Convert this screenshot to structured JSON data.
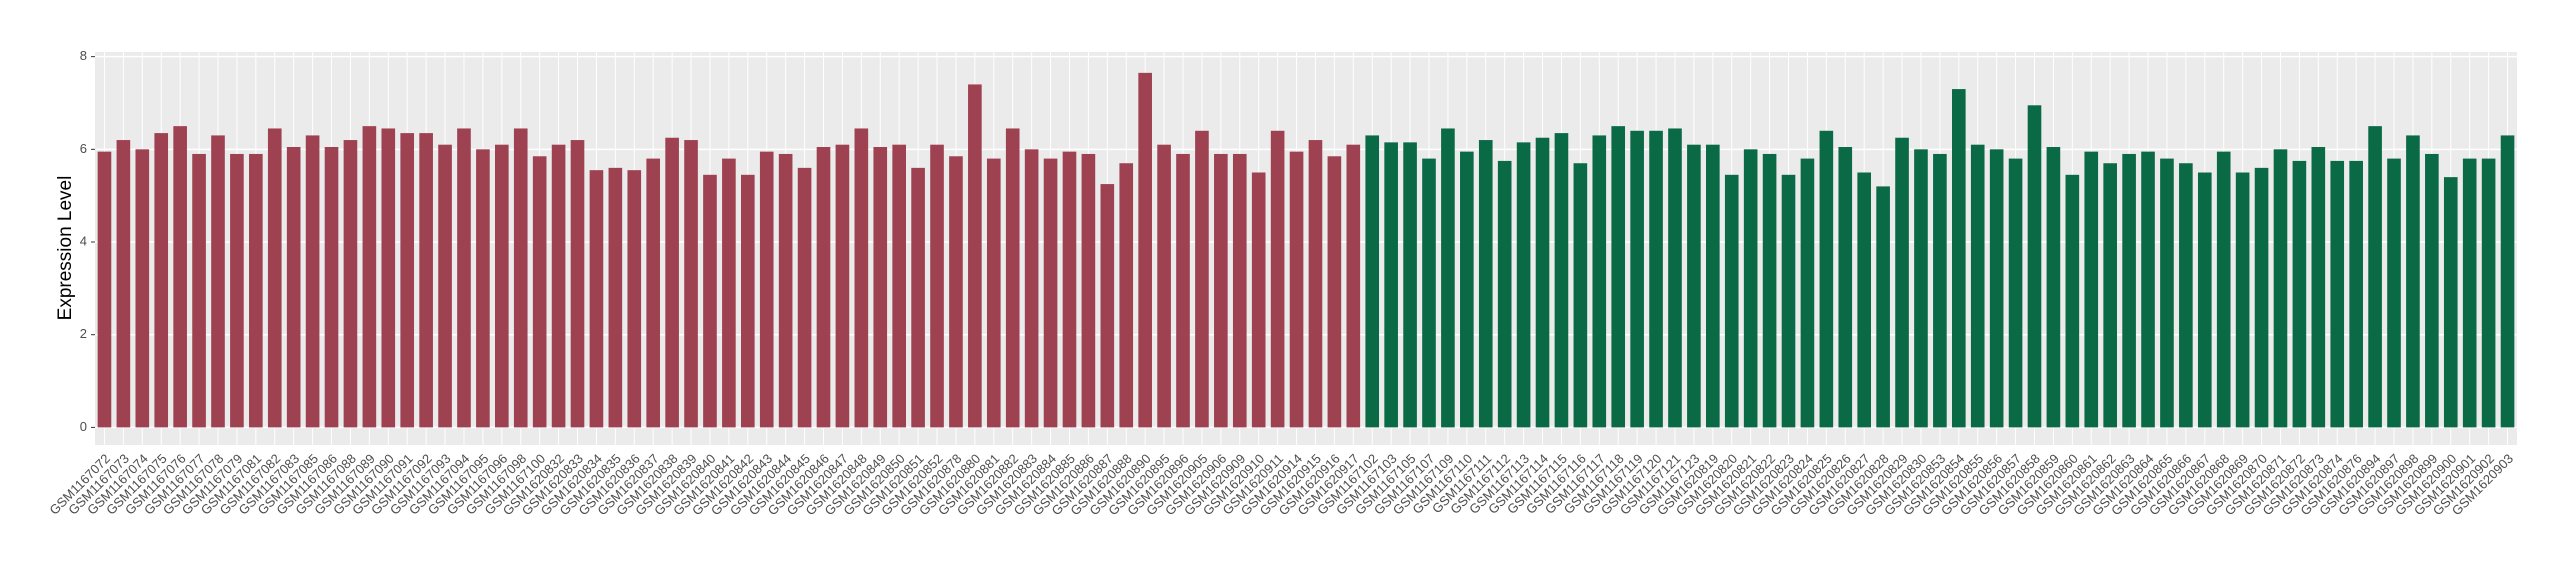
{
  "chart_data": {
    "type": "bar",
    "y_label": "Expression Level",
    "categories": [
      "GSM1167072",
      "GSM1167073",
      "GSM1167074",
      "GSM1167075",
      "GSM1167076",
      "GSM1167077",
      "GSM1167078",
      "GSM1167079",
      "GSM1167081",
      "GSM1167082",
      "GSM1167083",
      "GSM1167085",
      "GSM1167086",
      "GSM1167088",
      "GSM1167089",
      "GSM1167090",
      "GSM1167091",
      "GSM1167092",
      "GSM1167093",
      "GSM1167094",
      "GSM1167095",
      "GSM1167096",
      "GSM1167098",
      "GSM1167100",
      "GSM1620832",
      "GSM1620833",
      "GSM1620834",
      "GSM1620835",
      "GSM1620836",
      "GSM1620837",
      "GSM1620838",
      "GSM1620839",
      "GSM1620840",
      "GSM1620841",
      "GSM1620842",
      "GSM1620843",
      "GSM1620844",
      "GSM1620845",
      "GSM1620846",
      "GSM1620847",
      "GSM1620848",
      "GSM1620849",
      "GSM1620850",
      "GSM1620851",
      "GSM1620852",
      "GSM1620878",
      "GSM1620880",
      "GSM1620881",
      "GSM1620882",
      "GSM1620883",
      "GSM1620884",
      "GSM1620885",
      "GSM1620886",
      "GSM1620887",
      "GSM1620888",
      "GSM1620890",
      "GSM1620895",
      "GSM1620896",
      "GSM1620905",
      "GSM1620906",
      "GSM1620909",
      "GSM1620910",
      "GSM1620911",
      "GSM1620914",
      "GSM1620915",
      "GSM1620916",
      "GSM1620917",
      "GSM1167102",
      "GSM1167103",
      "GSM1167105",
      "GSM1167107",
      "GSM1167109",
      "GSM1167110",
      "GSM1167111",
      "GSM1167112",
      "GSM1167113",
      "GSM1167114",
      "GSM1167115",
      "GSM1167116",
      "GSM1167117",
      "GSM1167118",
      "GSM1167119",
      "GSM1167120",
      "GSM1167121",
      "GSM1167123",
      "GSM1620819",
      "GSM1620820",
      "GSM1620821",
      "GSM1620822",
      "GSM1620823",
      "GSM1620824",
      "GSM1620825",
      "GSM1620826",
      "GSM1620827",
      "GSM1620828",
      "GSM1620829",
      "GSM1620830",
      "GSM1620853",
      "GSM1620854",
      "GSM1620855",
      "GSM1620856",
      "GSM1620857",
      "GSM1620858",
      "GSM1620859",
      "GSM1620860",
      "GSM1620861",
      "GSM1620862",
      "GSM1620863",
      "GSM1620864",
      "GSM1620865",
      "GSM1620866",
      "GSM1620867",
      "GSM1620868",
      "GSM1620869",
      "GSM1620870",
      "GSM1620871",
      "GSM1620872",
      "GSM1620873",
      "GSM1620874",
      "GSM1620876",
      "GSM1620894",
      "GSM1620897",
      "GSM1620898",
      "GSM1620899",
      "GSM1620900",
      "GSM1620901",
      "GSM1620902",
      "GSM1620903"
    ],
    "values": [
      5.95,
      6.2,
      6.0,
      6.35,
      6.5,
      5.9,
      6.3,
      5.9,
      5.9,
      6.45,
      6.05,
      6.3,
      6.05,
      6.2,
      6.5,
      6.45,
      6.35,
      6.35,
      6.1,
      6.45,
      6.0,
      6.1,
      6.45,
      5.85,
      6.1,
      6.2,
      5.55,
      5.6,
      5.55,
      5.8,
      6.25,
      6.2,
      5.45,
      5.8,
      5.45,
      5.95,
      5.9,
      5.6,
      6.05,
      6.1,
      6.45,
      6.05,
      6.1,
      5.6,
      6.1,
      5.85,
      7.4,
      5.8,
      6.45,
      6.0,
      5.8,
      5.95,
      5.9,
      5.25,
      5.7,
      7.65,
      6.1,
      5.9,
      6.4,
      5.9,
      5.9,
      5.5,
      6.4,
      5.95,
      6.2,
      5.85,
      6.1,
      6.3,
      6.15,
      6.15,
      5.8,
      6.45,
      5.95,
      6.2,
      5.75,
      6.15,
      6.25,
      6.35,
      5.7,
      6.3,
      6.5,
      6.4,
      6.4,
      6.45,
      6.1,
      6.1,
      5.45,
      6.0,
      5.9,
      5.45,
      5.8,
      6.4,
      6.05,
      5.5,
      5.2,
      6.25,
      6.0,
      5.9,
      7.3,
      6.1,
      6.0,
      5.8,
      6.95,
      6.05,
      5.45,
      5.95,
      5.7,
      5.9,
      5.95,
      5.8,
      5.7,
      5.5,
      5.95,
      5.5,
      5.6,
      6.0,
      5.75,
      6.05,
      5.75,
      5.75,
      6.5,
      5.8,
      6.3,
      5.9,
      5.4,
      5.8,
      5.8,
      6.3
    ],
    "colors": [
      "#9e4150",
      "#9e4150",
      "#9e4150",
      "#9e4150",
      "#9e4150",
      "#9e4150",
      "#9e4150",
      "#9e4150",
      "#9e4150",
      "#9e4150",
      "#9e4150",
      "#9e4150",
      "#9e4150",
      "#9e4150",
      "#9e4150",
      "#9e4150",
      "#9e4150",
      "#9e4150",
      "#9e4150",
      "#9e4150",
      "#9e4150",
      "#9e4150",
      "#9e4150",
      "#9e4150",
      "#9e4150",
      "#9e4150",
      "#9e4150",
      "#9e4150",
      "#9e4150",
      "#9e4150",
      "#9e4150",
      "#9e4150",
      "#9e4150",
      "#9e4150",
      "#9e4150",
      "#9e4150",
      "#9e4150",
      "#9e4150",
      "#9e4150",
      "#9e4150",
      "#9e4150",
      "#9e4150",
      "#9e4150",
      "#9e4150",
      "#9e4150",
      "#9e4150",
      "#9e4150",
      "#9e4150",
      "#9e4150",
      "#9e4150",
      "#9e4150",
      "#9e4150",
      "#9e4150",
      "#9e4150",
      "#9e4150",
      "#9e4150",
      "#9e4150",
      "#9e4150",
      "#9e4150",
      "#9e4150",
      "#9e4150",
      "#9e4150",
      "#9e4150",
      "#9e4150",
      "#9e4150",
      "#9e4150",
      "#9e4150",
      "#0b6a46",
      "#0b6a46",
      "#0b6a46",
      "#0b6a46",
      "#0b6a46",
      "#0b6a46",
      "#0b6a46",
      "#0b6a46",
      "#0b6a46",
      "#0b6a46",
      "#0b6a46",
      "#0b6a46",
      "#0b6a46",
      "#0b6a46",
      "#0b6a46",
      "#0b6a46",
      "#0b6a46",
      "#0b6a46",
      "#0b6a46",
      "#0b6a46",
      "#0b6a46",
      "#0b6a46",
      "#0b6a46",
      "#0b6a46",
      "#0b6a46",
      "#0b6a46",
      "#0b6a46",
      "#0b6a46",
      "#0b6a46",
      "#0b6a46",
      "#0b6a46",
      "#0b6a46",
      "#0b6a46",
      "#0b6a46",
      "#0b6a46",
      "#0b6a46",
      "#0b6a46",
      "#0b6a46",
      "#0b6a46",
      "#0b6a46",
      "#0b6a46",
      "#0b6a46",
      "#0b6a46",
      "#0b6a46",
      "#0b6a46",
      "#0b6a46",
      "#0b6a46",
      "#0b6a46",
      "#0b6a46",
      "#0b6a46",
      "#0b6a46",
      "#0b6a46",
      "#0b6a46",
      "#0b6a46",
      "#0b6a46",
      "#0b6a46",
      "#0b6a46",
      "#0b6a46",
      "#0b6a46",
      "#0b6a46",
      "#0b6a46"
    ],
    "ylim": [
      -0.38,
      8.1
    ],
    "yticks": [
      0,
      2,
      4,
      6,
      8
    ],
    "grid": true
  }
}
